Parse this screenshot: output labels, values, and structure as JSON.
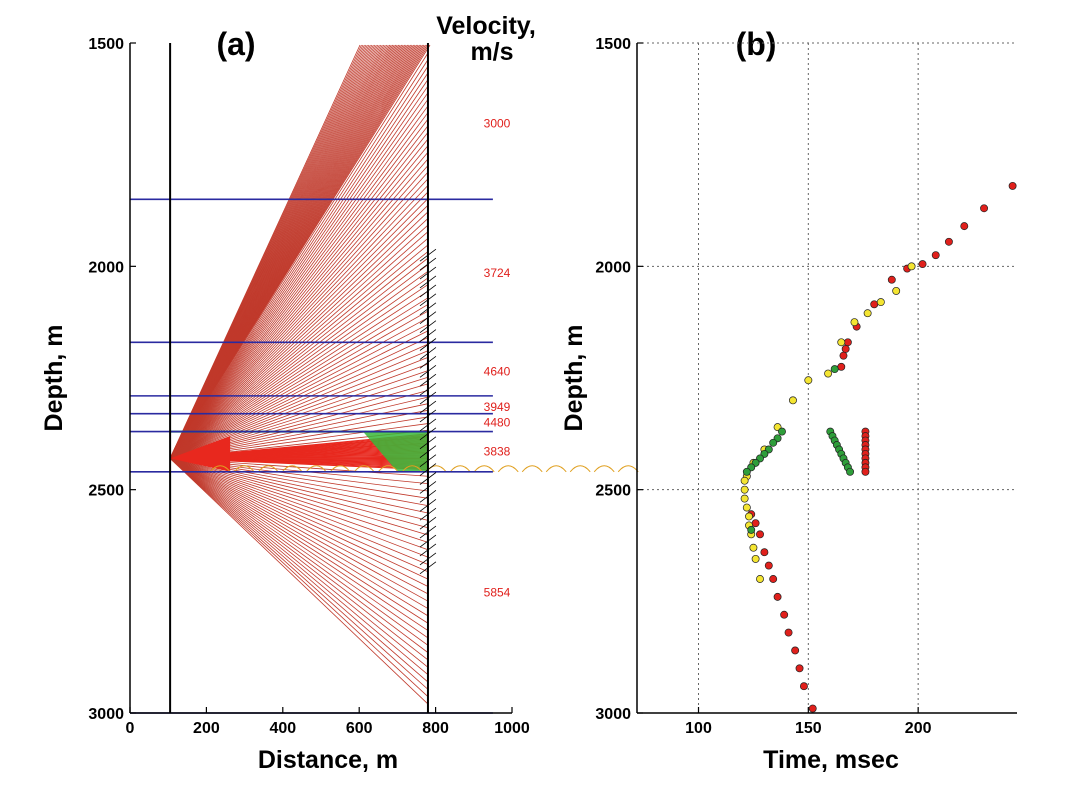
{
  "chart_data": [
    {
      "panel": "(a)",
      "type": "ray-trace",
      "title": "(a)",
      "xlabel": "Distance, m",
      "ylabel": "Depth, m",
      "xlim": [
        0,
        1000
      ],
      "ylim": [
        3000,
        1500
      ],
      "xticks": [
        "0",
        "200",
        "400",
        "600",
        "800",
        "1000"
      ],
      "yticks": [
        "1500",
        "2000",
        "2500",
        "3000"
      ],
      "velocity_title": [
        "Velocity,",
        "m/s"
      ],
      "source": {
        "x": 105,
        "depth": 2430
      },
      "well_x": 780,
      "source_well_x": 105,
      "layer_interfaces": [
        1850,
        2170,
        2290,
        2330,
        2370,
        2460
      ],
      "layer_velocities": [
        {
          "label": "3000",
          "depth": 1680
        },
        {
          "label": "3724",
          "depth": 2015
        },
        {
          "label": "4640",
          "depth": 2235
        },
        {
          "label": "3949",
          "depth": 2315
        },
        {
          "label": "4480",
          "depth": 2350
        },
        {
          "label": "3838",
          "depth": 2415
        },
        {
          "label": "5854",
          "depth": 2730
        }
      ],
      "colors": {
        "rays": "#c0392b",
        "interfaces": "#2a2aa0",
        "reflections": "#3ab83a",
        "well": "#000000"
      }
    },
    {
      "panel": "(b)",
      "type": "scatter",
      "title": "(b)",
      "xlabel": "Time, msec",
      "ylabel": "Depth, m",
      "xlim": [
        72,
        245
      ],
      "ylim": [
        3000,
        1500
      ],
      "xticks": [
        "100",
        "150",
        "200"
      ],
      "yticks": [
        "1500",
        "2000",
        "2500",
        "3000"
      ],
      "grid": true,
      "series": [
        {
          "name": "red",
          "color": "#e0201c",
          "points": [
            [
              243,
              1820
            ],
            [
              230,
              1870
            ],
            [
              221,
              1910
            ],
            [
              214,
              1945
            ],
            [
              208,
              1975
            ],
            [
              202,
              1995
            ],
            [
              195,
              2005
            ],
            [
              188,
              2030
            ],
            [
              180,
              2085
            ],
            [
              172,
              2135
            ],
            [
              168,
              2170
            ],
            [
              167,
              2185
            ],
            [
              166,
              2200
            ],
            [
              165,
              2225
            ],
            [
              152,
              2990
            ],
            [
              148,
              2940
            ],
            [
              146,
              2900
            ],
            [
              144,
              2860
            ],
            [
              141,
              2820
            ],
            [
              139,
              2780
            ],
            [
              136,
              2740
            ],
            [
              134,
              2700
            ],
            [
              132,
              2670
            ],
            [
              130,
              2640
            ],
            [
              128,
              2600
            ],
            [
              126,
              2575
            ],
            [
              124,
              2555
            ],
            [
              176,
              2370
            ],
            [
              176,
              2380
            ],
            [
              176,
              2390
            ],
            [
              176,
              2400
            ],
            [
              176,
              2410
            ],
            [
              176,
              2420
            ],
            [
              176,
              2430
            ],
            [
              176,
              2440
            ],
            [
              176,
              2450
            ],
            [
              176,
              2460
            ]
          ]
        },
        {
          "name": "yellow",
          "color": "#f4e532",
          "points": [
            [
              197,
              2000
            ],
            [
              190,
              2055
            ],
            [
              183,
              2080
            ],
            [
              177,
              2105
            ],
            [
              171,
              2125
            ],
            [
              165,
              2170
            ],
            [
              159,
              2240
            ],
            [
              150,
              2255
            ],
            [
              143,
              2300
            ],
            [
              136,
              2360
            ],
            [
              130,
              2410
            ],
            [
              125,
              2440
            ],
            [
              122,
              2470
            ],
            [
              121,
              2480
            ],
            [
              121,
              2500
            ],
            [
              121,
              2520
            ],
            [
              122,
              2540
            ],
            [
              123,
              2560
            ],
            [
              123,
              2580
            ],
            [
              124,
              2600
            ],
            [
              125,
              2630
            ],
            [
              126,
              2655
            ],
            [
              128,
              2700
            ]
          ]
        },
        {
          "name": "green",
          "color": "#2e9e3a",
          "points": [
            [
              162,
              2230
            ],
            [
              160,
              2370
            ],
            [
              161,
              2380
            ],
            [
              162,
              2390
            ],
            [
              163,
              2400
            ],
            [
              164,
              2410
            ],
            [
              165,
              2420
            ],
            [
              166,
              2430
            ],
            [
              167,
              2440
            ],
            [
              168,
              2450
            ],
            [
              169,
              2460
            ],
            [
              138,
              2370
            ],
            [
              136,
              2385
            ],
            [
              134,
              2395
            ],
            [
              132,
              2410
            ],
            [
              130,
              2420
            ],
            [
              128,
              2430
            ],
            [
              126,
              2440
            ],
            [
              124,
              2450
            ],
            [
              122,
              2460
            ],
            [
              124,
              2590
            ]
          ]
        }
      ]
    }
  ]
}
